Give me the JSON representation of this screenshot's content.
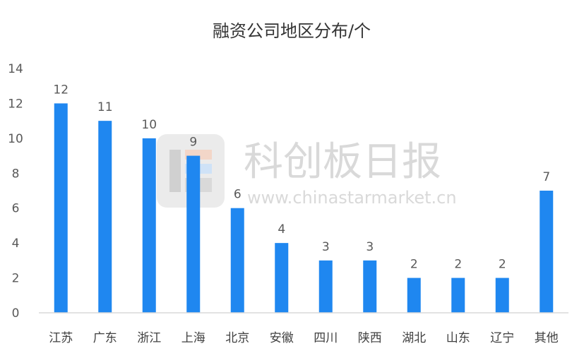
{
  "chart_data": {
    "type": "bar",
    "title": "融资公司地区分布/个",
    "xlabel": "",
    "ylabel": "",
    "categories": [
      "江苏",
      "广东",
      "浙江",
      "上海",
      "北京",
      "安徽",
      "四川",
      "陕西",
      "湖北",
      "山东",
      "辽宁",
      "其他"
    ],
    "values": [
      12,
      11,
      10,
      9,
      6,
      4,
      3,
      3,
      2,
      2,
      2,
      7
    ],
    "ylim": [
      0,
      14
    ],
    "yticks": [
      0,
      2,
      4,
      6,
      8,
      10,
      12,
      14
    ],
    "grid": false,
    "legend": "none",
    "bar_color": "#1f87f0"
  },
  "watermark": {
    "brand": "科创板日报",
    "url": "www.chinastarmarket.cn"
  }
}
